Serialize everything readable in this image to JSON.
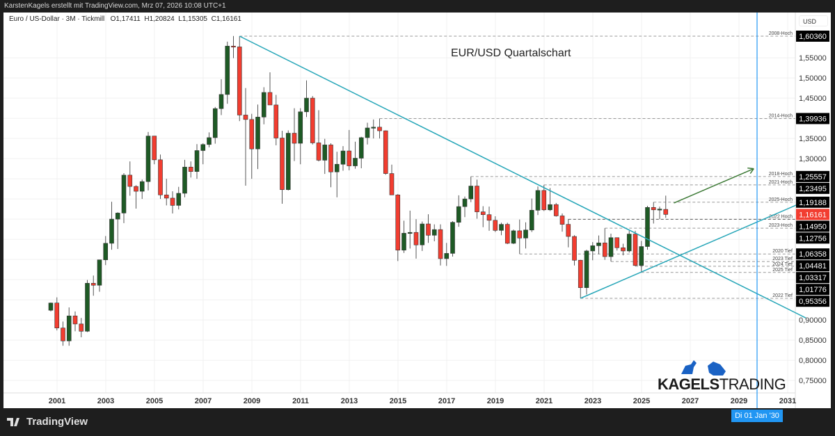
{
  "header": {
    "attribution": "KarstenKagels erstellt mit TradingView.com, Mrz 07, 2026 10:08 UTC+1"
  },
  "legend": {
    "symbol": "Euro / US-Dollar · 3M · Tickmill",
    "open": "O1,17411",
    "high": "H1,20824",
    "low": "L1,15305",
    "close": "C1,16161"
  },
  "currency_label": "USD",
  "footer": {
    "brand": "TradingView"
  },
  "logo": {
    "text_bold": "KAGELS",
    "text_light": "TRADING"
  },
  "crosshair_date_label": "Di 01 Jan '30",
  "colors": {
    "up": "#1e5a25",
    "down": "#f23d30",
    "trendline": "#26a6b8",
    "arrow": "#3d7a36",
    "vline": "#2196f3",
    "last_price_bg": "#f23d30"
  },
  "chart_data": {
    "type": "candlestick",
    "title": "EUR/USD Quartalschart",
    "interval": "3M",
    "ylim": [
      0.72,
      1.64
    ],
    "y_ticks": [
      "1,55000",
      "1,50000",
      "1,45000",
      "1,40000",
      "1,35000",
      "1,30000",
      "1,25000",
      "1,20000",
      "1,15000",
      "1,10000",
      "1,05000",
      "1,00000",
      "0,95000",
      "0,90000",
      "0,85000",
      "0,80000",
      "0,75000"
    ],
    "x_ticks": [
      "2001",
      "2003",
      "2005",
      "2007",
      "2009",
      "2011",
      "2013",
      "2015",
      "2017",
      "2019",
      "2021",
      "2023",
      "2025",
      "2027",
      "2029",
      "2031"
    ],
    "grid": true,
    "last_price": {
      "value": 1.16161,
      "label": "1,16161"
    },
    "candles": [
      [
        "2000-Q4",
        0.924,
        0.943,
        0.921,
        0.942
      ],
      [
        "2001-Q1",
        0.942,
        0.956,
        0.874,
        0.88
      ],
      [
        "2001-Q2",
        0.88,
        0.896,
        0.836,
        0.848
      ],
      [
        "2001-Q3",
        0.848,
        0.931,
        0.836,
        0.91
      ],
      [
        "2001-Q4",
        0.91,
        0.921,
        0.872,
        0.89
      ],
      [
        "2002-Q1",
        0.89,
        0.905,
        0.857,
        0.872
      ],
      [
        "2002-Q2",
        0.872,
        0.999,
        0.87,
        0.991
      ],
      [
        "2002-Q3",
        0.991,
        1.01,
        0.96,
        0.986
      ],
      [
        "2002-Q4",
        0.986,
        1.049,
        0.97,
        1.049
      ],
      [
        "2003-Q1",
        1.049,
        1.108,
        1.036,
        1.09
      ],
      [
        "2003-Q2",
        1.09,
        1.193,
        1.074,
        1.15
      ],
      [
        "2003-Q3",
        1.15,
        1.167,
        1.076,
        1.165
      ],
      [
        "2003-Q4",
        1.165,
        1.264,
        1.14,
        1.259
      ],
      [
        "2004-Q1",
        1.259,
        1.293,
        1.208,
        1.231
      ],
      [
        "2004-Q2",
        1.231,
        1.234,
        1.176,
        1.219
      ],
      [
        "2004-Q3",
        1.219,
        1.248,
        1.2,
        1.243
      ],
      [
        "2004-Q4",
        1.243,
        1.366,
        1.221,
        1.356
      ],
      [
        "2005-Q1",
        1.356,
        1.35,
        1.286,
        1.297
      ],
      [
        "2005-Q2",
        1.297,
        1.31,
        1.2,
        1.21
      ],
      [
        "2005-Q3",
        1.21,
        1.25,
        1.184,
        1.202
      ],
      [
        "2005-Q4",
        1.202,
        1.219,
        1.164,
        1.184
      ],
      [
        "2006-Q1",
        1.184,
        1.23,
        1.174,
        1.214
      ],
      [
        "2006-Q2",
        1.214,
        1.297,
        1.204,
        1.279
      ],
      [
        "2006-Q3",
        1.279,
        1.293,
        1.253,
        1.268
      ],
      [
        "2006-Q4",
        1.268,
        1.336,
        1.25,
        1.32
      ],
      [
        "2007-Q1",
        1.32,
        1.338,
        1.286,
        1.335
      ],
      [
        "2007-Q2",
        1.335,
        1.365,
        1.328,
        1.352
      ],
      [
        "2007-Q3",
        1.352,
        1.428,
        1.337,
        1.424
      ],
      [
        "2007-Q4",
        1.424,
        1.497,
        1.408,
        1.459
      ],
      [
        "2008-Q1",
        1.459,
        1.59,
        1.436,
        1.579
      ],
      [
        "2008-Q2",
        1.579,
        1.604,
        1.549,
        1.577
      ],
      [
        "2008-Q3",
        1.577,
        1.6036,
        1.393,
        1.408
      ],
      [
        "2008-Q4",
        1.408,
        1.475,
        1.233,
        1.397
      ],
      [
        "2009-Q1",
        1.397,
        1.411,
        1.25,
        1.324
      ],
      [
        "2009-Q2",
        1.324,
        1.434,
        1.274,
        1.403
      ],
      [
        "2009-Q3",
        1.403,
        1.477,
        1.385,
        1.464
      ],
      [
        "2009-Q4",
        1.464,
        1.514,
        1.433,
        1.433
      ],
      [
        "2010-Q1",
        1.433,
        1.458,
        1.333,
        1.351
      ],
      [
        "2010-Q2",
        1.351,
        1.369,
        1.188,
        1.223
      ],
      [
        "2010-Q3",
        1.223,
        1.37,
        1.221,
        1.363
      ],
      [
        "2010-Q4",
        1.363,
        1.425,
        1.294,
        1.338
      ],
      [
        "2011-Q1",
        1.338,
        1.425,
        1.286,
        1.416
      ],
      [
        "2011-Q2",
        1.416,
        1.494,
        1.403,
        1.45
      ],
      [
        "2011-Q3",
        1.45,
        1.455,
        1.335,
        1.339
      ],
      [
        "2011-Q4",
        1.339,
        1.42,
        1.293,
        1.296
      ],
      [
        "2012-Q1",
        1.296,
        1.349,
        1.262,
        1.334
      ],
      [
        "2012-Q2",
        1.334,
        1.338,
        1.229,
        1.267
      ],
      [
        "2012-Q3",
        1.267,
        1.317,
        1.204,
        1.286
      ],
      [
        "2012-Q4",
        1.286,
        1.331,
        1.27,
        1.319
      ],
      [
        "2013-Q1",
        1.319,
        1.371,
        1.271,
        1.282
      ],
      [
        "2013-Q2",
        1.282,
        1.342,
        1.275,
        1.301
      ],
      [
        "2013-Q3",
        1.301,
        1.354,
        1.276,
        1.352
      ],
      [
        "2013-Q4",
        1.352,
        1.389,
        1.335,
        1.376
      ],
      [
        "2014-Q1",
        1.376,
        1.397,
        1.35,
        1.378
      ],
      [
        "2014-Q2",
        1.378,
        1.399,
        1.35,
        1.369
      ],
      [
        "2014-Q3",
        1.369,
        1.37,
        1.26,
        1.263
      ],
      [
        "2014-Q4",
        1.263,
        1.285,
        1.21,
        1.21
      ],
      [
        "2015-Q1",
        1.21,
        1.212,
        1.046,
        1.073
      ],
      [
        "2015-Q2",
        1.073,
        1.146,
        1.066,
        1.115
      ],
      [
        "2015-Q3",
        1.115,
        1.171,
        1.077,
        1.117
      ],
      [
        "2015-Q4",
        1.117,
        1.15,
        1.052,
        1.086
      ],
      [
        "2016-Q1",
        1.086,
        1.144,
        1.071,
        1.138
      ],
      [
        "2016-Q2",
        1.138,
        1.162,
        1.091,
        1.11
      ],
      [
        "2016-Q3",
        1.11,
        1.137,
        1.095,
        1.124
      ],
      [
        "2016-Q4",
        1.124,
        1.137,
        1.035,
        1.052
      ],
      [
        "2017-Q1",
        1.052,
        1.091,
        1.034,
        1.065
      ],
      [
        "2017-Q2",
        1.065,
        1.145,
        1.057,
        1.142
      ],
      [
        "2017-Q3",
        1.142,
        1.209,
        1.131,
        1.181
      ],
      [
        "2017-Q4",
        1.181,
        1.206,
        1.155,
        1.2
      ],
      [
        "2018-Q1",
        1.2,
        1.2556,
        1.192,
        1.232
      ],
      [
        "2018-Q2",
        1.232,
        1.248,
        1.151,
        1.168
      ],
      [
        "2018-Q3",
        1.168,
        1.182,
        1.13,
        1.161
      ],
      [
        "2018-Q4",
        1.161,
        1.181,
        1.121,
        1.147
      ],
      [
        "2019-Q1",
        1.147,
        1.157,
        1.118,
        1.122
      ],
      [
        "2019-Q2",
        1.122,
        1.141,
        1.11,
        1.137
      ],
      [
        "2019-Q3",
        1.137,
        1.141,
        1.088,
        1.09
      ],
      [
        "2019-Q4",
        1.09,
        1.124,
        1.088,
        1.121
      ],
      [
        "2020-Q1",
        1.121,
        1.149,
        1.0636,
        1.103
      ],
      [
        "2020-Q2",
        1.103,
        1.142,
        1.077,
        1.123
      ],
      [
        "2020-Q3",
        1.123,
        1.201,
        1.118,
        1.172
      ],
      [
        "2020-Q4",
        1.172,
        1.231,
        1.16,
        1.221
      ],
      [
        "2021-Q1",
        1.221,
        1.2349,
        1.17,
        1.173
      ],
      [
        "2021-Q2",
        1.173,
        1.227,
        1.17,
        1.186
      ],
      [
        "2021-Q3",
        1.186,
        1.19,
        1.156,
        1.158
      ],
      [
        "2021-Q4",
        1.158,
        1.164,
        1.119,
        1.137
      ],
      [
        "2022-Q1",
        1.137,
        1.15,
        1.08,
        1.107
      ],
      [
        "2022-Q2",
        1.107,
        1.11,
        1.035,
        1.048
      ],
      [
        "2022-Q3",
        1.048,
        1.049,
        0.9536,
        0.98
      ],
      [
        "2022-Q4",
        0.98,
        1.074,
        0.963,
        1.071
      ],
      [
        "2023-Q1",
        1.071,
        1.093,
        1.048,
        1.084
      ],
      [
        "2023-Q2",
        1.084,
        1.1095,
        1.063,
        1.091
      ],
      [
        "2023-Q3",
        1.091,
        1.1275,
        1.049,
        1.057
      ],
      [
        "2023-Q4",
        1.057,
        1.114,
        1.045,
        1.104
      ],
      [
        "2024-Q1",
        1.104,
        1.104,
        1.072,
        1.079
      ],
      [
        "2024-Q2",
        1.079,
        1.089,
        1.06,
        1.071
      ],
      [
        "2024-Q3",
        1.071,
        1.121,
        1.067,
        1.113
      ],
      [
        "2024-Q4",
        1.113,
        1.121,
        1.0332,
        1.035
      ],
      [
        "2025-Q1",
        1.035,
        1.096,
        1.0178,
        1.082
      ],
      [
        "2025-Q2",
        1.082,
        1.183,
        1.074,
        1.179
      ],
      [
        "2025-Q3",
        1.179,
        1.1919,
        1.139,
        1.173
      ],
      [
        "2025-Q4",
        1.173,
        1.181,
        1.15,
        1.175
      ],
      [
        "2026-Q1",
        1.1741,
        1.2082,
        1.1531,
        1.1616
      ]
    ],
    "levels": [
      {
        "name": "2008-Hoch",
        "value": 1.6036,
        "label": "1,60360",
        "from": "2008-Q3"
      },
      {
        "name": "2014-Hoch",
        "value": 1.39936,
        "label": "1,39936",
        "from": "2014-Q2"
      },
      {
        "name": "2018-Hoch",
        "value": 1.25557,
        "label": "1,25557",
        "from": "2018-Q1"
      },
      {
        "name": "2021-Hoch",
        "value": 1.23495,
        "label": "1,23495",
        "from": "2021-Q1"
      },
      {
        "name": "2025-Hoch",
        "value": 1.19188,
        "label": "1,19188",
        "from": "2025-Q3"
      },
      {
        "name": "2022 Hoch",
        "value": 1.1495,
        "label": "1,14950",
        "from": "2022-Q1"
      },
      {
        "name": "2023-Hoch",
        "value": 1.12756,
        "label": "1,12756",
        "from": "2023-Q3"
      },
      {
        "name": "2020 Tief",
        "value": 1.06358,
        "label": "1,06358",
        "from": "2020-Q1"
      },
      {
        "name": "2023 Tief",
        "value": 1.04481,
        "label": "1,04481",
        "from": "2023-Q4"
      },
      {
        "name": "2024 Tief",
        "value": 1.03317,
        "label": "1,03317",
        "from": "2024-Q4"
      },
      {
        "name": "2025 Tief",
        "value": 1.01776,
        "label": "1,01776",
        "from": "2025-Q1"
      },
      {
        "name": "2022 Tief",
        "value": 0.95356,
        "label": "0,95356",
        "from": "2022-Q3"
      }
    ],
    "trendlines": [
      {
        "name": "downtrend",
        "from": [
          "2008-Q3",
          1.6036
        ],
        "to": [
          "2031-Q4",
          0.905
        ]
      },
      {
        "name": "uptrend",
        "from": [
          "2022-Q3",
          0.9536
        ],
        "to": [
          "2031-Q4",
          1.195
        ]
      }
    ],
    "arrow": {
      "from": [
        "2026-Q2",
        1.19
      ],
      "to": [
        "2029-Q3",
        1.275
      ]
    }
  }
}
